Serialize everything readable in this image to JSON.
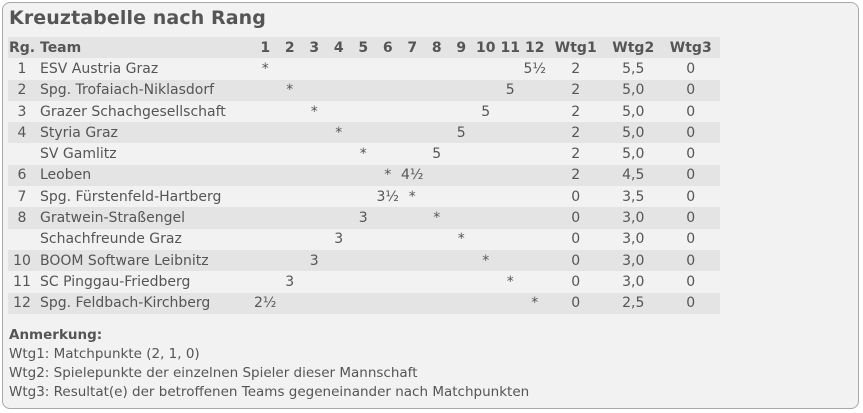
{
  "title": "Kreuztabelle nach Rang",
  "headers": {
    "rank": "Rg.",
    "team": "Team",
    "rounds": [
      "1",
      "2",
      "3",
      "4",
      "5",
      "6",
      "7",
      "8",
      "9",
      "10",
      "11",
      "12"
    ],
    "w1": "Wtg1",
    "w2": "Wtg2",
    "w3": "Wtg3"
  },
  "rows": [
    {
      "rank": "1",
      "team": "ESV Austria Graz",
      "cells": [
        "*",
        "",
        "",
        "",
        "",
        "",
        "",
        "",
        "",
        "",
        "",
        "5½"
      ],
      "w1": "2",
      "w2": "5,5",
      "w3": "0"
    },
    {
      "rank": "2",
      "team": "Spg. Trofaiach-Niklasdorf",
      "cells": [
        "",
        "*",
        "",
        "",
        "",
        "",
        "",
        "",
        "",
        "",
        "5",
        ""
      ],
      "w1": "2",
      "w2": "5,0",
      "w3": "0"
    },
    {
      "rank": "3",
      "team": "Grazer Schachgesellschaft",
      "cells": [
        "",
        "",
        "*",
        "",
        "",
        "",
        "",
        "",
        "",
        "5",
        "",
        ""
      ],
      "w1": "2",
      "w2": "5,0",
      "w3": "0"
    },
    {
      "rank": "4",
      "team": "Styria Graz",
      "cells": [
        "",
        "",
        "",
        "*",
        "",
        "",
        "",
        "",
        "5",
        "",
        "",
        ""
      ],
      "w1": "2",
      "w2": "5,0",
      "w3": "0"
    },
    {
      "rank": "",
      "team": "SV Gamlitz",
      "cells": [
        "",
        "",
        "",
        "",
        "*",
        "",
        "",
        "5",
        "",
        "",
        "",
        ""
      ],
      "w1": "2",
      "w2": "5,0",
      "w3": "0"
    },
    {
      "rank": "6",
      "team": "Leoben",
      "cells": [
        "",
        "",
        "",
        "",
        "",
        "*",
        "4½",
        "",
        "",
        "",
        "",
        ""
      ],
      "w1": "2",
      "w2": "4,5",
      "w3": "0"
    },
    {
      "rank": "7",
      "team": "Spg. Fürstenfeld-Hartberg",
      "cells": [
        "",
        "",
        "",
        "",
        "",
        "3½",
        "*",
        "",
        "",
        "",
        "",
        ""
      ],
      "w1": "0",
      "w2": "3,5",
      "w3": "0"
    },
    {
      "rank": "8",
      "team": "Gratwein-Straßengel",
      "cells": [
        "",
        "",
        "",
        "",
        "3",
        "",
        "",
        "*",
        "",
        "",
        "",
        ""
      ],
      "w1": "0",
      "w2": "3,0",
      "w3": "0"
    },
    {
      "rank": "",
      "team": "Schachfreunde Graz",
      "cells": [
        "",
        "",
        "",
        "3",
        "",
        "",
        "",
        "",
        "*",
        "",
        "",
        ""
      ],
      "w1": "0",
      "w2": "3,0",
      "w3": "0"
    },
    {
      "rank": "10",
      "team": "BOOM Software Leibnitz",
      "cells": [
        "",
        "",
        "3",
        "",
        "",
        "",
        "",
        "",
        "",
        "*",
        "",
        ""
      ],
      "w1": "0",
      "w2": "3,0",
      "w3": "0"
    },
    {
      "rank": "11",
      "team": "SC Pinggau-Friedberg",
      "cells": [
        "",
        "3",
        "",
        "",
        "",
        "",
        "",
        "",
        "",
        "",
        "*",
        ""
      ],
      "w1": "0",
      "w2": "3,0",
      "w3": "0"
    },
    {
      "rank": "12",
      "team": "Spg. Feldbach-Kirchberg",
      "cells": [
        "2½",
        "",
        "",
        "",
        "",
        "",
        "",
        "",
        "",
        "",
        "",
        "*"
      ],
      "w1": "0",
      "w2": "2,5",
      "w3": "0"
    }
  ],
  "notes": {
    "heading": "Anmerkung:",
    "lines": [
      "Wtg1: Matchpunkte (2, 1, 0)",
      "Wtg2: Spielepunkte der einzelnen Spieler dieser Mannschaft",
      "Wtg3: Resultat(e) der betroffenen Teams gegeneinander nach Matchpunkten"
    ]
  },
  "colors": {
    "panel_bg": "#f2f2f2",
    "stripe_bg": "#e4e4e4",
    "text": "#555555",
    "border": "#a9a9a9"
  }
}
